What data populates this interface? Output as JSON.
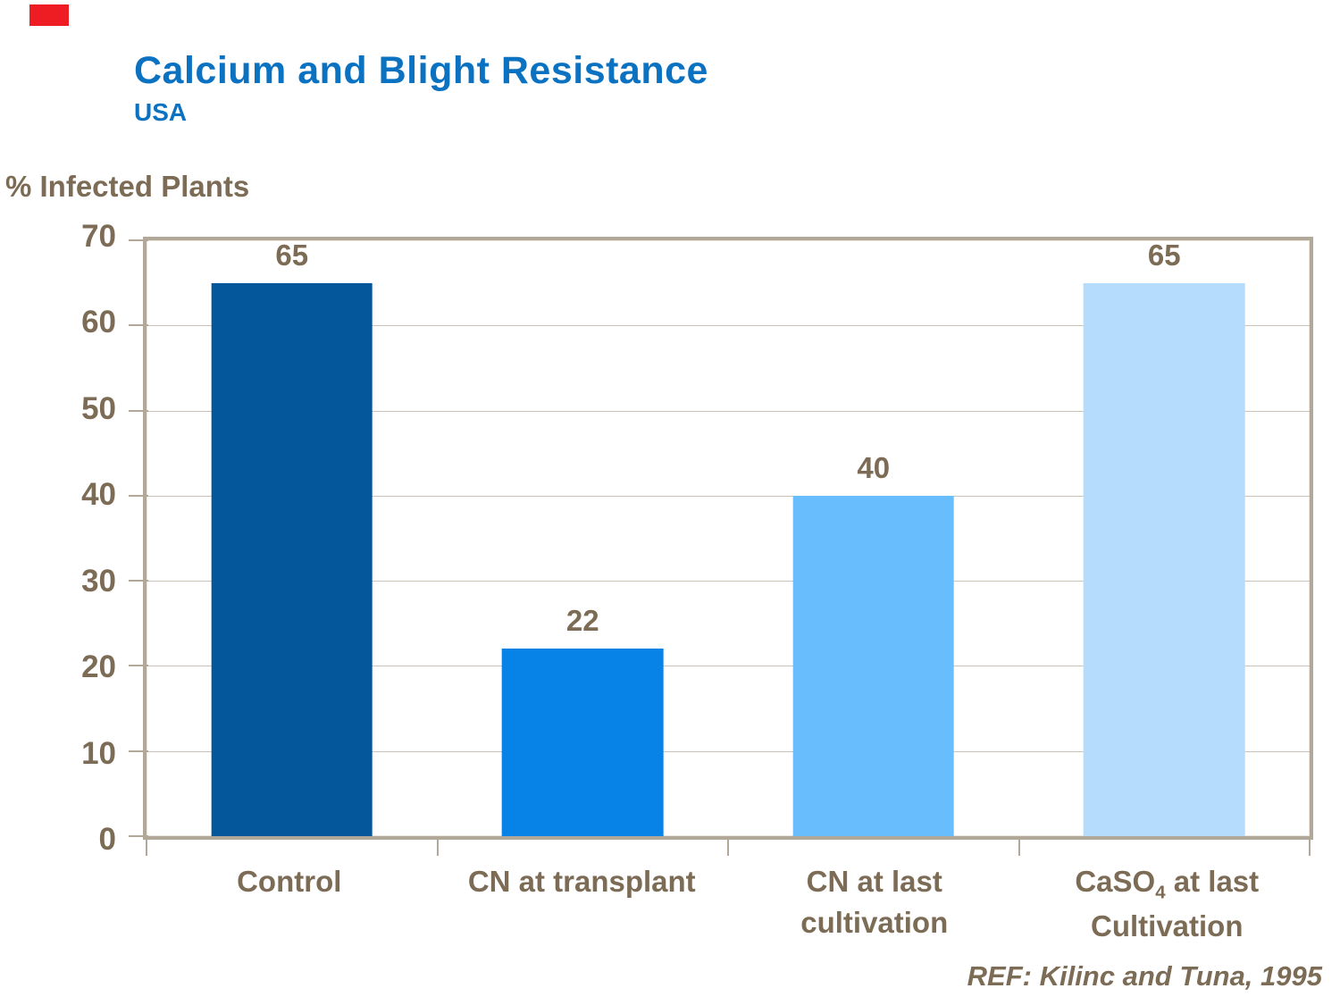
{
  "colors": {
    "title_blue": "#0b72c2",
    "text_brown": "#7c6b55",
    "grid_line": "#cbc3b7",
    "plot_frame": "#b2a89a",
    "marker_red": "#ee1c23",
    "plot_bg": "#ffffff"
  },
  "chart_data": {
    "type": "bar",
    "title": "Calcium and Blight Resistance",
    "subtitle": "USA",
    "ylabel": "% Infected Plants",
    "xlabel": "",
    "categories": [
      "Control",
      "CN at transplant",
      "CN at last cultivation",
      "CaSO4 at last Cultivation"
    ],
    "values": [
      65,
      22,
      40,
      65
    ],
    "ylim": [
      0,
      70
    ],
    "yticks": [
      0,
      10,
      20,
      30,
      40,
      50,
      60,
      70
    ],
    "grid": true,
    "legend_position": "none",
    "bar_colors": [
      "#05579b",
      "#0782e6",
      "#68befc",
      "#b5dcfc"
    ],
    "reference": "REF: Kilinc and Tuna, 1995"
  },
  "xaxis_display": [
    {
      "lines": [
        [
          {
            "t": "Control"
          }
        ]
      ]
    },
    {
      "lines": [
        [
          {
            "t": "CN at transplant"
          }
        ]
      ]
    },
    {
      "lines": [
        [
          {
            "t": "CN at last"
          }
        ],
        [
          {
            "t": "cultivation"
          }
        ]
      ]
    },
    {
      "lines": [
        [
          {
            "t": "CaSO"
          },
          {
            "t": "4",
            "sub": true
          },
          {
            "t": " at last"
          }
        ],
        [
          {
            "t": "Cultivation"
          }
        ]
      ]
    }
  ]
}
